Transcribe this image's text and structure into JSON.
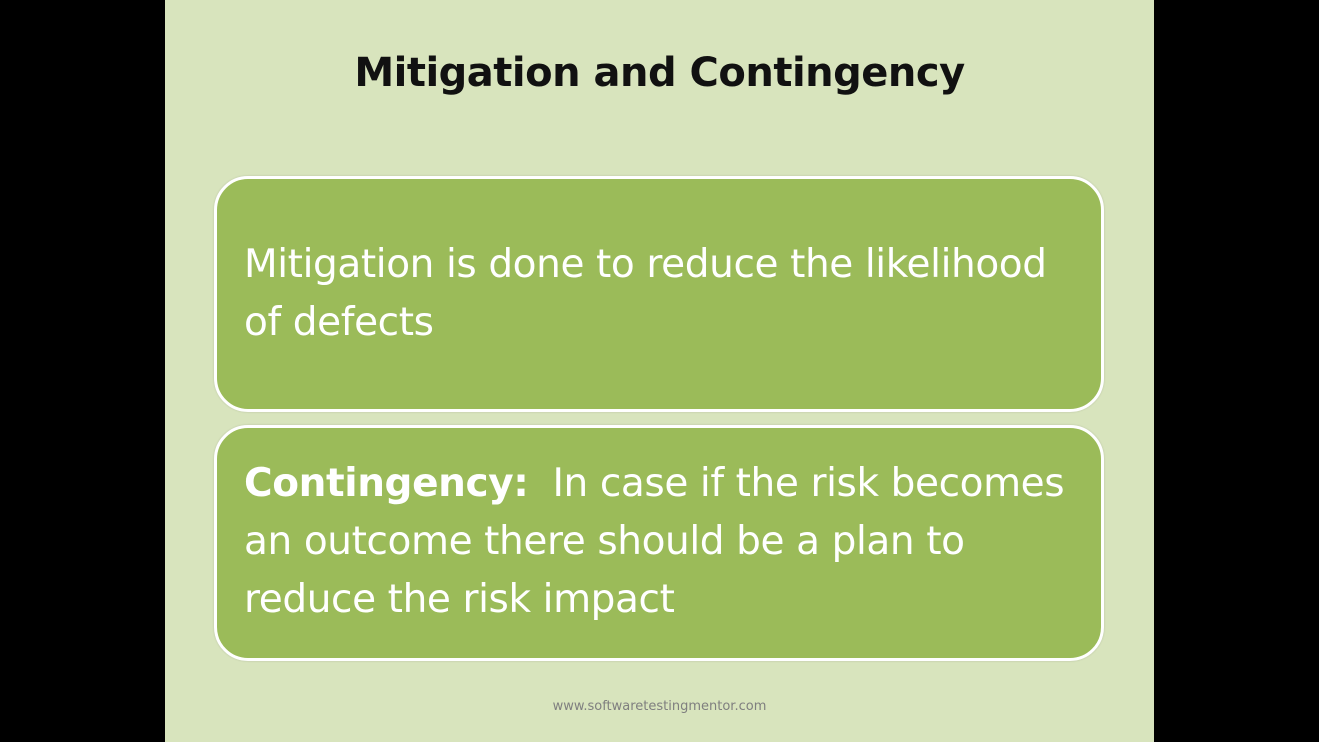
{
  "slide": {
    "title": "Mitigation and Contingency",
    "mitigation": {
      "text": "Mitigation is done to reduce the likelihood of defects"
    },
    "contingency": {
      "term": "Contingency:",
      "text": "In case if the risk becomes an outcome there should be a plan to reduce the risk impact"
    },
    "footer": "www.softwaretestingmentor.com"
  },
  "colors": {
    "background": "#000000",
    "slide_background": "#d8e4bd",
    "box_fill": "#9bbb59",
    "box_border": "#ffffff",
    "title_text": "#111111",
    "box_text": "#ffffff",
    "footer_text": "#7f7f7f"
  }
}
